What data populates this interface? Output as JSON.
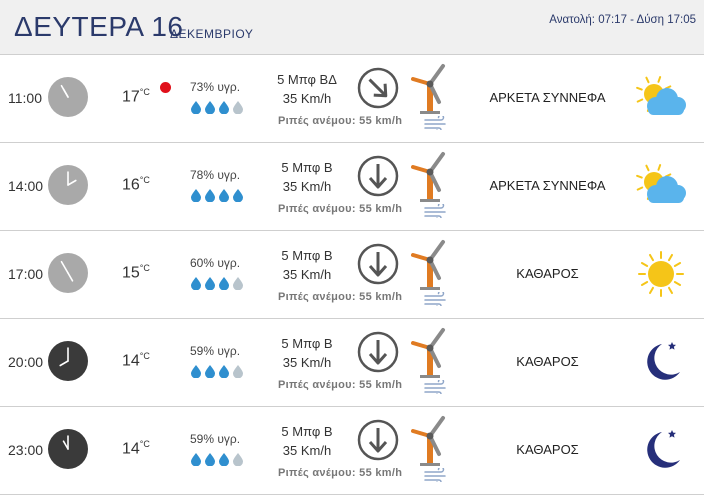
{
  "header": {
    "day": "ΔΕΥΤΕΡΑ 16",
    "month": "ΔΕΚΕΜΒΡΙΟΥ",
    "sun": "Ανατολή: 07:17 - Δύση 17:05"
  },
  "rows": [
    {
      "time": "11:00",
      "temp": "17",
      "unit": "°C",
      "humidity": "73% υγρ.",
      "wind_bf": "5 Μπφ ΒΔ",
      "wind_kmh": "35 Km/h",
      "gust": "Ριπές ανέμου: 55 km/h",
      "condition": "ΑΡΚΕΤΑ ΣΥΝΝΕΦΑ",
      "icon": "partly-cloudy-icon",
      "clock": "light",
      "arrow": "northwest-arrow",
      "filled_drops": 3,
      "marker": true
    },
    {
      "time": "14:00",
      "temp": "16",
      "unit": "°C",
      "humidity": "78% υγρ.",
      "wind_bf": "5 Μπφ Β",
      "wind_kmh": "35 Km/h",
      "gust": "Ριπές ανέμου: 55 km/h",
      "condition": "ΑΡΚΕΤΑ ΣΥΝΝΕΦΑ",
      "icon": "partly-cloudy-icon",
      "clock": "light",
      "arrow": "north-arrow",
      "filled_drops": 4,
      "marker": false
    },
    {
      "time": "17:00",
      "temp": "15",
      "unit": "°C",
      "humidity": "60% υγρ.",
      "wind_bf": "5 Μπφ Β",
      "wind_kmh": "35 Km/h",
      "gust": "Ριπές ανέμου: 55 km/h",
      "condition": "ΚΑΘΑΡΟΣ",
      "icon": "sun-icon",
      "clock": "light",
      "arrow": "north-arrow",
      "filled_drops": 3,
      "marker": false
    },
    {
      "time": "20:00",
      "temp": "14",
      "unit": "°C",
      "humidity": "59% υγρ.",
      "wind_bf": "5 Μπφ Β",
      "wind_kmh": "35 Km/h",
      "gust": "Ριπές ανέμου: 55 km/h",
      "condition": "ΚΑΘΑΡΟΣ",
      "icon": "moon-icon",
      "clock": "dark",
      "arrow": "north-arrow",
      "filled_drops": 3,
      "marker": false
    },
    {
      "time": "23:00",
      "temp": "14",
      "unit": "°C",
      "humidity": "59% υγρ.",
      "wind_bf": "5 Μπφ Β",
      "wind_kmh": "35 Km/h",
      "gust": "Ριπές ανέμου: 55 km/h",
      "condition": "ΚΑΘΑΡΟΣ",
      "icon": "moon-icon",
      "clock": "dark",
      "arrow": "north-arrow",
      "filled_drops": 3,
      "marker": false
    }
  ],
  "colors": {
    "title": "#2b3a6b",
    "clock_light": "#a9a9a9",
    "clock_dark": "#3a3a3a",
    "drop_filled": "#2f8fcf",
    "drop_empty": "#b8c4cc",
    "marker": "#e0101a",
    "turbine": "#e07b22",
    "sun": "#f5c518",
    "cloud": "#5ab4ec",
    "moon": "#262f7a"
  }
}
